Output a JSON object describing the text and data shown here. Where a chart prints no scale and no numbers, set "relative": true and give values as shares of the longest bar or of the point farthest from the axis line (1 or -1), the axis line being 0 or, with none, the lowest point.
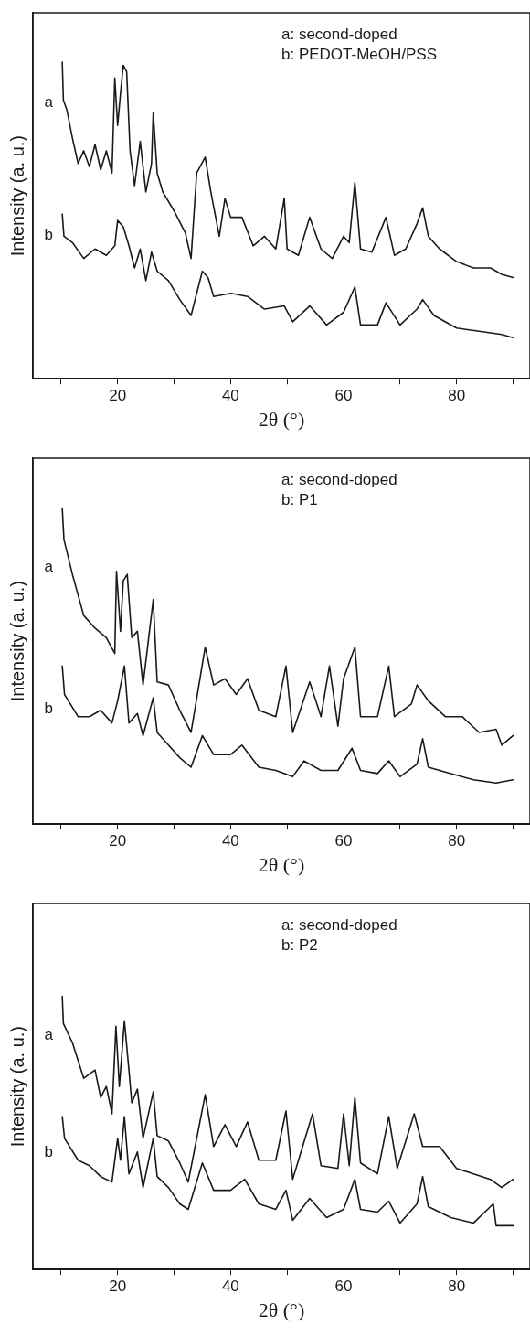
{
  "chart_data": [
    {
      "type": "line",
      "relative": true,
      "xlabel": "2θ (°)",
      "ylabel": "Intensity (a. u.)",
      "xlim": [
        5,
        93
      ],
      "xticks": [
        {
          "value": 10,
          "label": null
        },
        20,
        {
          "value": 30,
          "label": null
        },
        40,
        {
          "value": 50,
          "label": null
        },
        60,
        {
          "value": 70,
          "label": null
        },
        80,
        {
          "value": 90,
          "label": null
        }
      ],
      "tick_labels": "x",
      "grid": false,
      "legend": false,
      "annotations": [
        "a: second-doped",
        "b: PEDOT-MeOH/PSS"
      ],
      "series": [
        {
          "name": "a",
          "color": "#1a1a1a",
          "x": [
            10.2,
            10.4,
            11,
            12,
            13,
            14,
            15,
            16,
            17,
            18,
            19,
            19.5,
            20,
            20.5,
            21,
            21.6,
            22.2,
            23,
            24,
            25,
            26,
            26.3,
            27,
            28,
            30,
            32,
            33,
            34,
            35.5,
            36.5,
            38,
            39,
            40,
            42,
            44,
            46,
            48,
            49.5,
            50,
            52,
            54,
            56,
            58,
            60,
            61,
            62,
            63,
            65,
            67.5,
            69,
            71,
            73,
            74,
            75,
            77,
            80,
            83,
            86,
            88,
            90
          ],
          "values": [
            1.0,
            0.88,
            0.85,
            0.76,
            0.68,
            0.72,
            0.67,
            0.74,
            0.66,
            0.72,
            0.65,
            0.95,
            0.8,
            0.9,
            0.99,
            0.97,
            0.72,
            0.61,
            0.75,
            0.59,
            0.68,
            0.84,
            0.65,
            0.59,
            0.53,
            0.46,
            0.38,
            0.65,
            0.7,
            0.59,
            0.45,
            0.57,
            0.51,
            0.51,
            0.42,
            0.45,
            0.41,
            0.57,
            0.41,
            0.39,
            0.51,
            0.41,
            0.38,
            0.45,
            0.43,
            0.62,
            0.41,
            0.4,
            0.51,
            0.39,
            0.41,
            0.49,
            0.54,
            0.45,
            0.41,
            0.37,
            0.35,
            0.35,
            0.33,
            0.32
          ]
        },
        {
          "name": "b",
          "color": "#1a1a1a",
          "x": [
            10.2,
            10.5,
            12,
            14,
            16,
            18,
            19.5,
            20,
            21,
            22,
            23,
            24,
            25,
            26,
            27,
            29,
            31,
            33,
            35,
            36,
            37,
            40,
            43,
            46,
            49.5,
            51,
            54,
            57,
            60,
            62,
            63,
            66,
            67.5,
            70,
            73,
            74,
            76,
            80,
            84,
            88,
            90
          ],
          "values": [
            0.52,
            0.45,
            0.43,
            0.38,
            0.41,
            0.39,
            0.42,
            0.5,
            0.48,
            0.42,
            0.35,
            0.41,
            0.31,
            0.4,
            0.34,
            0.31,
            0.25,
            0.2,
            0.34,
            0.32,
            0.26,
            0.27,
            0.26,
            0.22,
            0.23,
            0.18,
            0.23,
            0.17,
            0.21,
            0.29,
            0.17,
            0.17,
            0.24,
            0.17,
            0.22,
            0.25,
            0.2,
            0.16,
            0.15,
            0.14,
            0.13
          ]
        }
      ]
    },
    {
      "type": "line",
      "relative": true,
      "xlabel": "2θ (°)",
      "ylabel": "Intensity (a. u.)",
      "xlim": [
        5,
        93
      ],
      "xticks": [
        {
          "value": 10,
          "label": null
        },
        20,
        {
          "value": 30,
          "label": null
        },
        40,
        {
          "value": 50,
          "label": null
        },
        60,
        {
          "value": 70,
          "label": null
        },
        80,
        {
          "value": 90,
          "label": null
        }
      ],
      "tick_labels": "x",
      "grid": false,
      "legend": false,
      "annotations": [
        "a: second-doped",
        "b: P1"
      ],
      "series": [
        {
          "name": "a",
          "color": "#1a1a1a",
          "x": [
            10.2,
            10.5,
            12,
            14,
            16,
            18,
            19.5,
            19.8,
            20.5,
            21,
            21.7,
            22.5,
            23.5,
            24.5,
            26.3,
            27,
            29,
            31,
            33,
            35.5,
            37,
            39,
            41,
            43,
            45,
            48,
            49.8,
            51,
            54,
            56,
            57.5,
            59,
            60,
            62,
            63,
            66,
            68,
            69,
            72,
            73,
            75,
            78,
            81,
            84,
            87,
            88,
            90
          ],
          "values": [
            1.0,
            0.9,
            0.79,
            0.66,
            0.62,
            0.59,
            0.54,
            0.8,
            0.61,
            0.77,
            0.79,
            0.59,
            0.61,
            0.44,
            0.71,
            0.45,
            0.44,
            0.36,
            0.29,
            0.56,
            0.44,
            0.46,
            0.41,
            0.46,
            0.36,
            0.34,
            0.5,
            0.29,
            0.45,
            0.34,
            0.5,
            0.31,
            0.46,
            0.56,
            0.34,
            0.34,
            0.5,
            0.34,
            0.38,
            0.44,
            0.39,
            0.34,
            0.34,
            0.29,
            0.3,
            0.25,
            0.28
          ]
        },
        {
          "name": "b",
          "color": "#1a1a1a",
          "x": [
            10.2,
            10.6,
            13,
            15,
            17,
            19,
            20,
            21.2,
            22,
            23.5,
            24.5,
            26.3,
            27,
            29,
            31,
            33,
            35,
            37,
            40,
            42,
            45,
            48,
            51,
            53,
            56,
            59,
            61.5,
            63,
            66,
            68,
            70,
            73,
            74,
            75,
            79,
            83,
            87,
            90
          ],
          "values": [
            0.5,
            0.41,
            0.34,
            0.34,
            0.36,
            0.32,
            0.39,
            0.5,
            0.32,
            0.35,
            0.28,
            0.4,
            0.29,
            0.25,
            0.21,
            0.18,
            0.28,
            0.22,
            0.22,
            0.25,
            0.18,
            0.17,
            0.15,
            0.2,
            0.17,
            0.17,
            0.24,
            0.17,
            0.16,
            0.2,
            0.15,
            0.19,
            0.27,
            0.18,
            0.16,
            0.14,
            0.13,
            0.14
          ]
        }
      ]
    },
    {
      "type": "line",
      "relative": true,
      "xlabel": "2θ (°)",
      "ylabel": "Intensity (a. u.)",
      "xlim": [
        5,
        93
      ],
      "xticks": [
        {
          "value": 10,
          "label": null
        },
        20,
        {
          "value": 30,
          "label": null
        },
        40,
        {
          "value": 50,
          "label": null
        },
        60,
        {
          "value": 70,
          "label": null
        },
        80,
        {
          "value": 90,
          "label": null
        }
      ],
      "tick_labels": "x",
      "grid": false,
      "legend": false,
      "annotations": [
        "a: second-doped",
        "b: P2"
      ],
      "series": [
        {
          "name": "a",
          "color": "#1a1a1a",
          "x": [
            10.2,
            10.4,
            12,
            14,
            16,
            17,
            18,
            19,
            19.7,
            20.3,
            21.2,
            22,
            22.5,
            23.5,
            24.5,
            26.3,
            27,
            29,
            31,
            32.5,
            35.5,
            37,
            39,
            41,
            43,
            45,
            48,
            49.8,
            51,
            54.5,
            56,
            59,
            60,
            61,
            62,
            63,
            66,
            68,
            69.5,
            72.5,
            74,
            77,
            80,
            83,
            86,
            88,
            90
          ],
          "values": [
            1.0,
            0.9,
            0.83,
            0.7,
            0.73,
            0.63,
            0.67,
            0.57,
            0.89,
            0.67,
            0.91,
            0.73,
            0.61,
            0.66,
            0.48,
            0.65,
            0.49,
            0.47,
            0.39,
            0.32,
            0.64,
            0.45,
            0.53,
            0.45,
            0.54,
            0.4,
            0.4,
            0.58,
            0.33,
            0.57,
            0.38,
            0.37,
            0.57,
            0.38,
            0.63,
            0.39,
            0.35,
            0.56,
            0.37,
            0.57,
            0.45,
            0.45,
            0.37,
            0.35,
            0.33,
            0.3,
            0.33
          ]
        },
        {
          "name": "b",
          "color": "#1a1a1a",
          "x": [
            10.2,
            10.6,
            13,
            15,
            17,
            19,
            20,
            20.5,
            21.2,
            22,
            23.5,
            24.5,
            26.3,
            27,
            29,
            31,
            32.5,
            35,
            37,
            40,
            42.5,
            45,
            48,
            49.8,
            51,
            54,
            57,
            60,
            62,
            63,
            66,
            68,
            70,
            73,
            74,
            75,
            79,
            83,
            86.5,
            87,
            90
          ],
          "values": [
            0.56,
            0.48,
            0.4,
            0.38,
            0.34,
            0.32,
            0.48,
            0.4,
            0.56,
            0.35,
            0.43,
            0.3,
            0.48,
            0.34,
            0.3,
            0.24,
            0.22,
            0.39,
            0.29,
            0.29,
            0.33,
            0.24,
            0.22,
            0.29,
            0.18,
            0.26,
            0.19,
            0.22,
            0.33,
            0.22,
            0.21,
            0.25,
            0.17,
            0.24,
            0.34,
            0.23,
            0.19,
            0.17,
            0.24,
            0.16,
            0.16
          ]
        }
      ]
    }
  ]
}
